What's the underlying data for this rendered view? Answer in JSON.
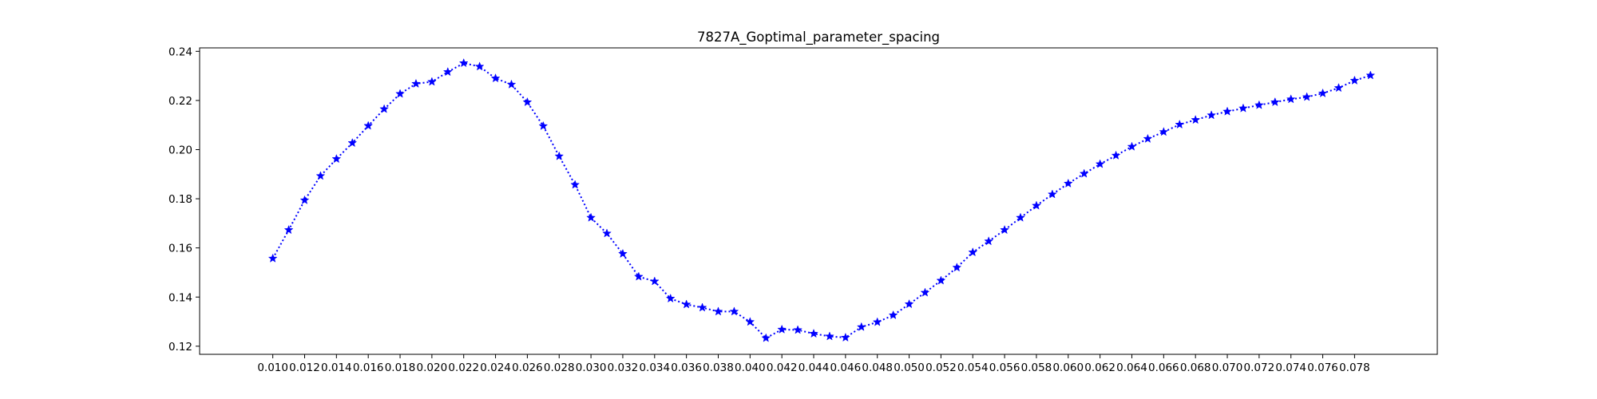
{
  "chart_data": {
    "type": "line",
    "title": "7827A_Goptimal_parameter_spacing",
    "xlabel": "",
    "ylabel": "",
    "xlim": [
      0.0054,
      0.0832
    ],
    "ylim": [
      0.1167,
      0.2414
    ],
    "x_ticks": [
      "0.010",
      "0.012",
      "0.014",
      "0.016",
      "0.018",
      "0.020",
      "0.022",
      "0.024",
      "0.026",
      "0.028",
      "0.030",
      "0.032",
      "0.034",
      "0.036",
      "0.038",
      "0.040",
      "0.042",
      "0.044",
      "0.046",
      "0.048",
      "0.050",
      "0.052",
      "0.054",
      "0.056",
      "0.058",
      "0.060",
      "0.062",
      "0.064",
      "0.066",
      "0.068",
      "0.070",
      "0.072",
      "0.074",
      "0.076",
      "0.078"
    ],
    "y_ticks": [
      "0.12",
      "0.14",
      "0.16",
      "0.18",
      "0.20",
      "0.22",
      "0.24"
    ],
    "grid": false,
    "legend": "none",
    "series": [
      {
        "color": "#0000ff",
        "line_style": "dotted",
        "marker": "star",
        "x": [
          0.01,
          0.011,
          0.012,
          0.013,
          0.014,
          0.015,
          0.016,
          0.017,
          0.018,
          0.019,
          0.02,
          0.021,
          0.022,
          0.023,
          0.024,
          0.025,
          0.026,
          0.027,
          0.028,
          0.029,
          0.03,
          0.031,
          0.032,
          0.033,
          0.034,
          0.035,
          0.036,
          0.037,
          0.038,
          0.039,
          0.04,
          0.041,
          0.042,
          0.043,
          0.044,
          0.045,
          0.046,
          0.047,
          0.048,
          0.049,
          0.05,
          0.051,
          0.052,
          0.053,
          0.054,
          0.055,
          0.056,
          0.057,
          0.058,
          0.059,
          0.06,
          0.061,
          0.062,
          0.063,
          0.064,
          0.065,
          0.066,
          0.067,
          0.068,
          0.069,
          0.07,
          0.071,
          0.072,
          0.073,
          0.074,
          0.075,
          0.076,
          0.077,
          0.078,
          0.079
        ],
        "y": [
          0.1557,
          0.1673,
          0.1794,
          0.1893,
          0.1962,
          0.2027,
          0.2097,
          0.2165,
          0.2227,
          0.2268,
          0.2276,
          0.2316,
          0.2352,
          0.2338,
          0.229,
          0.2265,
          0.2193,
          0.2096,
          0.1973,
          0.1857,
          0.1723,
          0.1659,
          0.1576,
          0.1483,
          0.1464,
          0.1394,
          0.137,
          0.1357,
          0.1341,
          0.1341,
          0.1299,
          0.1233,
          0.1268,
          0.1266,
          0.1251,
          0.124,
          0.1235,
          0.1278,
          0.1298,
          0.1326,
          0.1371,
          0.1418,
          0.1467,
          0.152,
          0.1582,
          0.1627,
          0.1673,
          0.1723,
          0.1772,
          0.1818,
          0.1862,
          0.1902,
          0.1941,
          0.1976,
          0.2012,
          0.2044,
          0.2072,
          0.2102,
          0.2121,
          0.214,
          0.2155,
          0.2168,
          0.2181,
          0.2193,
          0.2205,
          0.2214,
          0.2229,
          0.2251,
          0.2281,
          0.2302
        ]
      }
    ]
  }
}
